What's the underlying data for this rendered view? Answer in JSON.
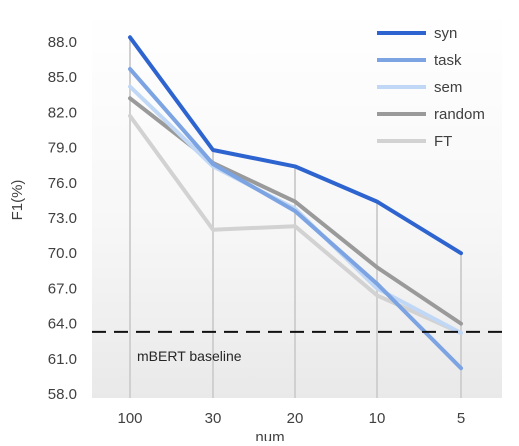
{
  "chart_data": {
    "type": "line",
    "title": "",
    "xlabel": "num",
    "ylabel": "F1(%)",
    "categories": [
      "100",
      "30",
      "20",
      "10",
      "5"
    ],
    "ylim": [
      58.0,
      89.5
    ],
    "yticks": [
      "58.0",
      "61.0",
      "64.0",
      "67.0",
      "70.0",
      "73.0",
      "76.0",
      "79.0",
      "82.0",
      "85.0",
      "88.0"
    ],
    "grid": false,
    "legend_position": "top-right",
    "series": [
      {
        "name": "syn",
        "color": "#2E64CF",
        "values": [
          88.4,
          78.8,
          77.4,
          74.4,
          70.0
        ]
      },
      {
        "name": "task",
        "color": "#7CA3E2",
        "values": [
          85.7,
          77.6,
          73.6,
          67.4,
          60.2
        ]
      },
      {
        "name": "sem",
        "color": "#C0D8F5",
        "values": [
          84.2,
          77.4,
          73.8,
          67.0,
          63.2
        ]
      },
      {
        "name": "random",
        "color": "#9A9A9A",
        "values": [
          83.2,
          77.7,
          74.4,
          68.8,
          64.0
        ]
      },
      {
        "name": "FT",
        "color": "#D2D2D2",
        "values": [
          81.7,
          72.0,
          72.3,
          66.4,
          63.2
        ]
      }
    ],
    "baseline": {
      "label": "mBERT baseline",
      "value": 63.3
    }
  }
}
